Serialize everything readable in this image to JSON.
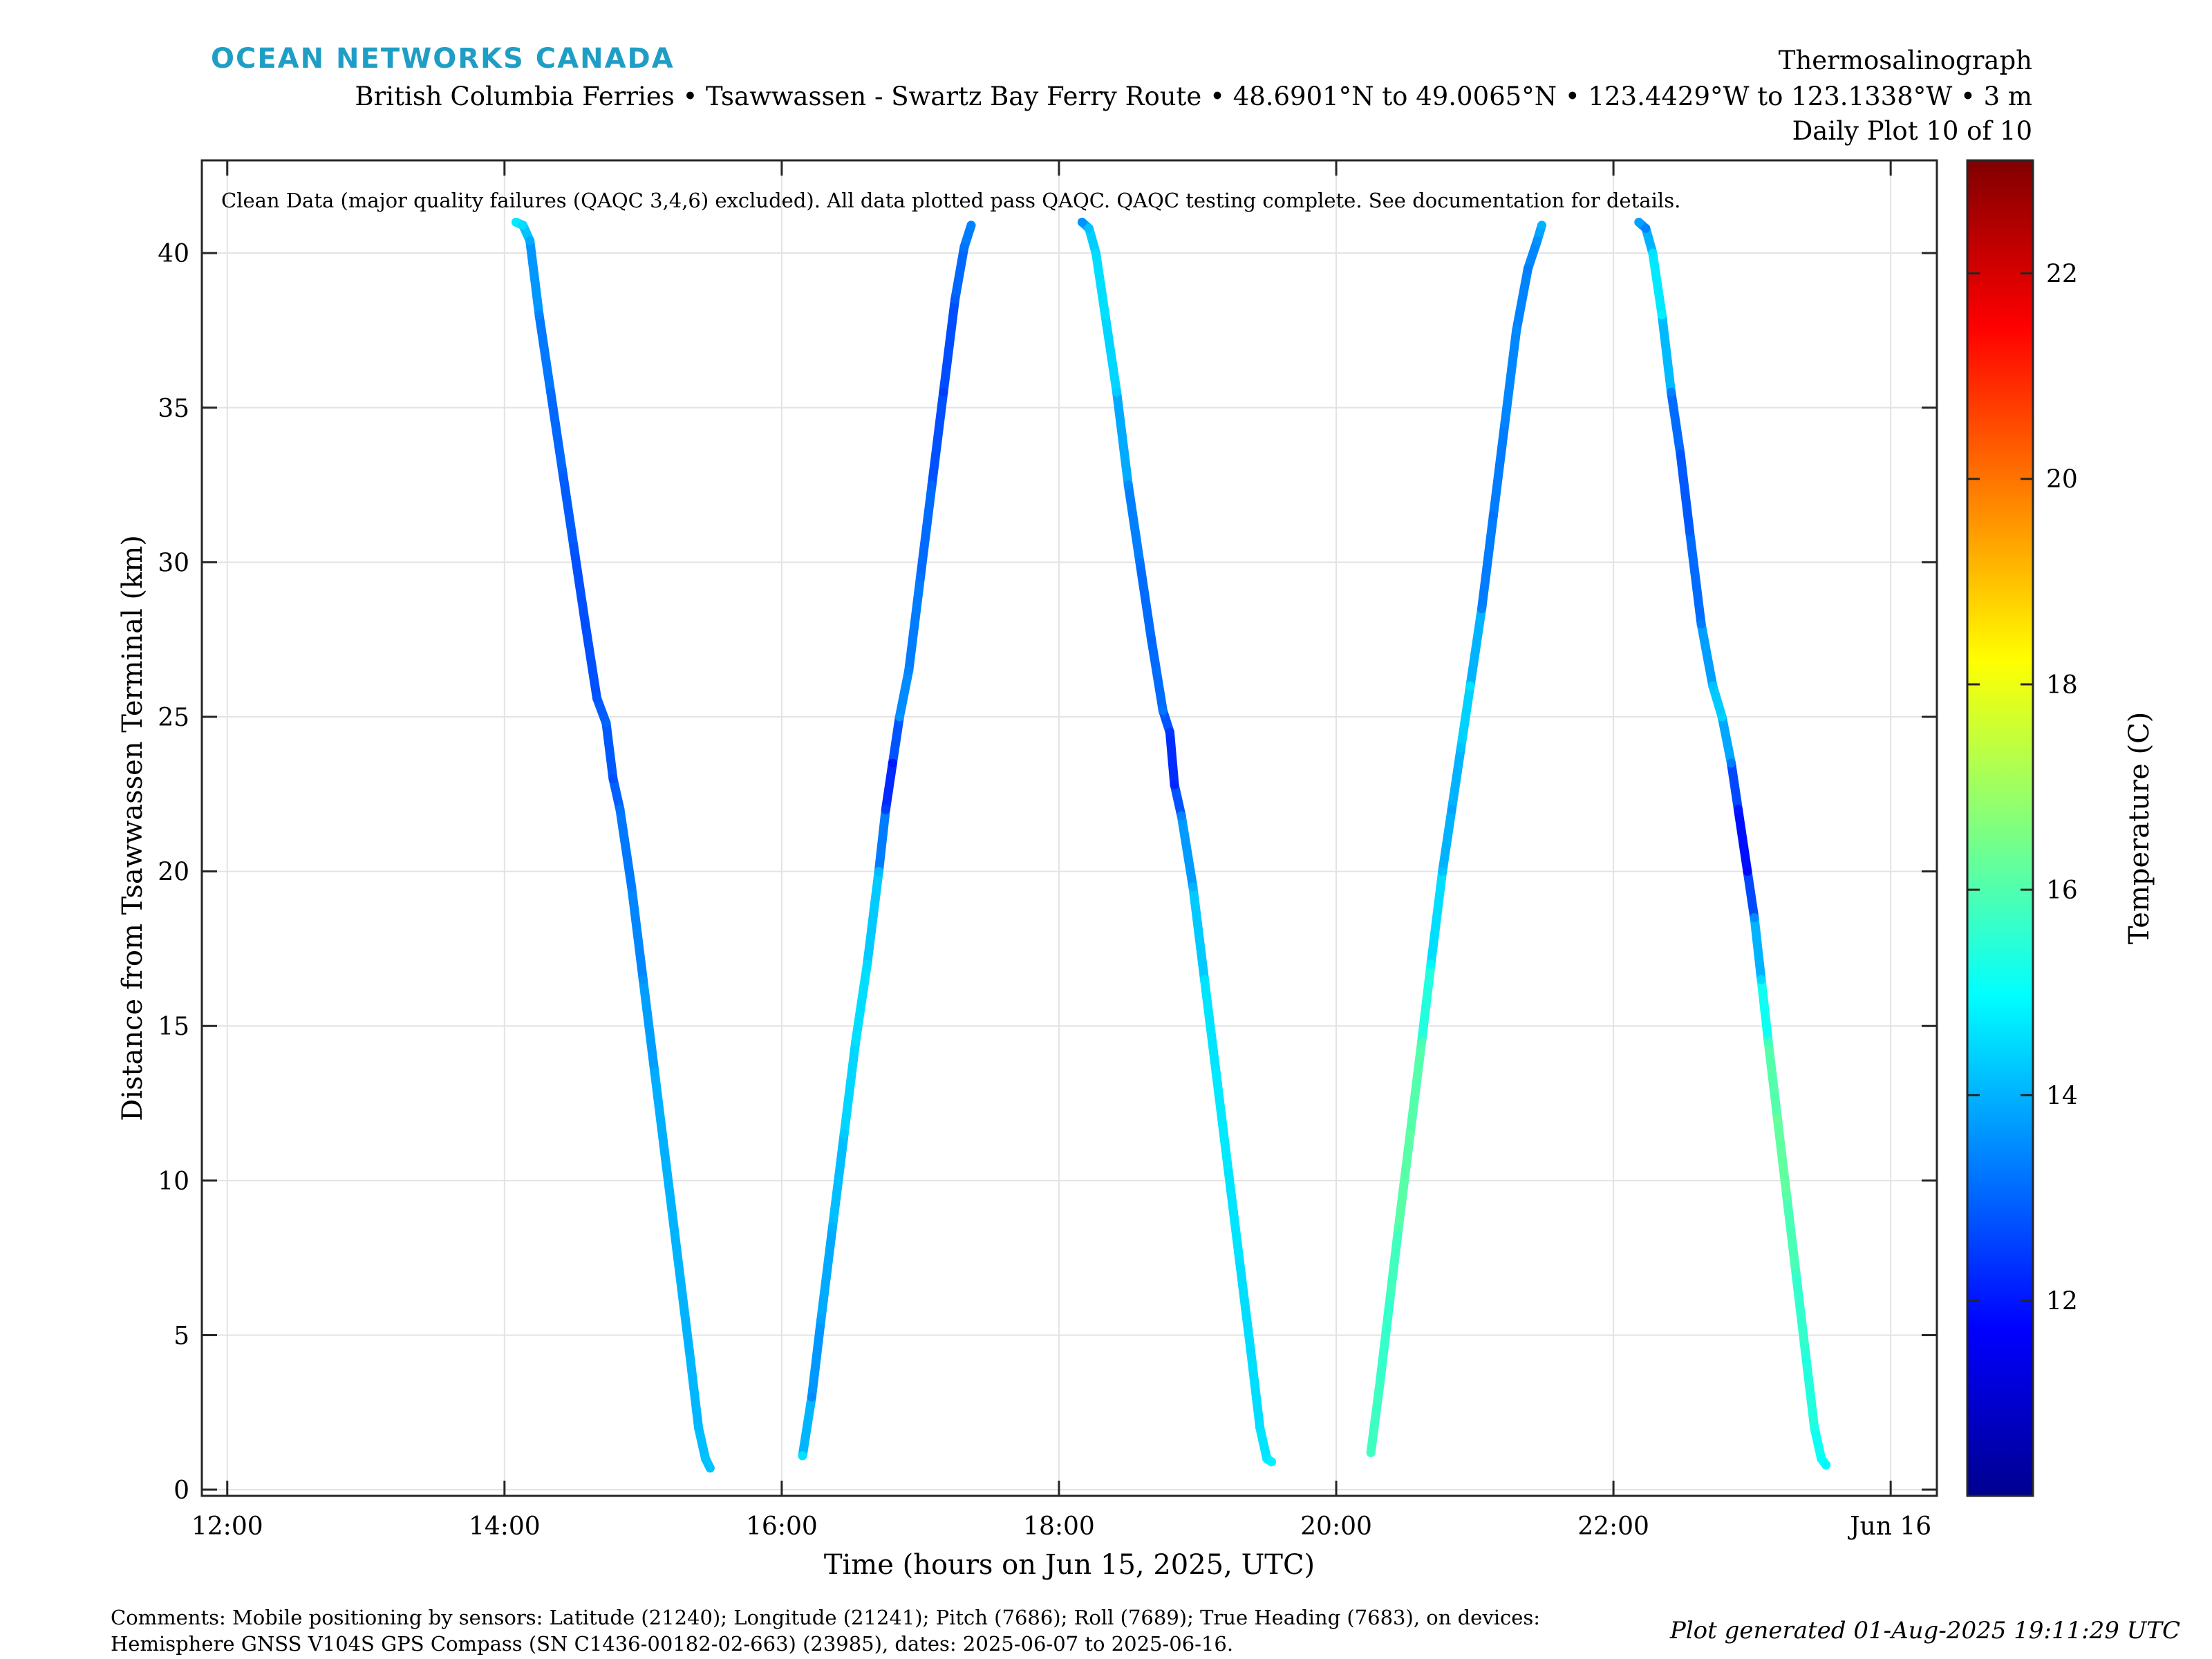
{
  "header": {
    "brand": "OCEAN NETWORKS CANADA",
    "instrument": "Thermosalinograph",
    "route": "British Columbia Ferries • Tsawwassen - Swartz Bay Ferry Route • 48.6901°N to 49.0065°N • 123.4429°W to 123.1338°W • 3 m",
    "plot_index": "Daily Plot 10 of 10"
  },
  "footer": {
    "comments_line1": "Comments: Mobile positioning by sensors: Latitude (21240); Longitude (21241); Pitch (7686); Roll (7689); True Heading (7683), on devices:",
    "comments_line2": "Hemisphere GNSS V104S GPS Compass (SN C1436-00182-02-663) (23985), dates: 2025-06-07 to 2025-06-16.",
    "generated": "Plot generated 01-Aug-2025 19:11:29 UTC"
  },
  "chart_data": {
    "type": "scatter",
    "annotation": "Clean Data (major quality failures (QAQC 3,4,6) excluded). All data plotted pass QAQC. QAQC testing complete. See documentation for details.",
    "xlabel": "Time (hours on Jun 15, 2025, UTC)",
    "ylabel": "Distance from Tsawwassen Terminal (km)",
    "xlim": [
      "2025-06-15T11:49",
      "2025-06-16T00:20"
    ],
    "ylim": [
      -0.2,
      43
    ],
    "xticks": [
      {
        "t": "2025-06-15T12:00",
        "label": "12:00"
      },
      {
        "t": "2025-06-15T14:00",
        "label": "14:00"
      },
      {
        "t": "2025-06-15T16:00",
        "label": "16:00"
      },
      {
        "t": "2025-06-15T18:00",
        "label": "18:00"
      },
      {
        "t": "2025-06-15T20:00",
        "label": "20:00"
      },
      {
        "t": "2025-06-15T22:00",
        "label": "22:00"
      },
      {
        "t": "2025-06-16T00:00",
        "label": "Jun 16"
      }
    ],
    "yticks": [
      0,
      5,
      10,
      15,
      20,
      25,
      30,
      35,
      40
    ],
    "grid": true,
    "colorbar": {
      "label": "Temperature (C)",
      "range": [
        10.1,
        23.1
      ],
      "ticks": [
        12,
        14,
        16,
        18,
        20,
        22
      ],
      "colormap": "jet",
      "position": "right"
    },
    "series": [
      {
        "points": [
          [
            "2025-06-15T14:05",
            41.0,
            14.7
          ],
          [
            "2025-06-15T14:08",
            40.9,
            14.5
          ],
          [
            "2025-06-15T14:11",
            40.4,
            13.9
          ],
          [
            "2025-06-15T14:15",
            38.0,
            13.4
          ],
          [
            "2025-06-15T14:20",
            35.5,
            13.1
          ],
          [
            "2025-06-15T14:25",
            33.0,
            13.0
          ],
          [
            "2025-06-15T14:30",
            30.5,
            12.8
          ],
          [
            "2025-06-15T14:35",
            28.0,
            12.7
          ],
          [
            "2025-06-15T14:40",
            25.6,
            12.8
          ],
          [
            "2025-06-15T14:44",
            24.8,
            13.0
          ],
          [
            "2025-06-15T14:47",
            23.0,
            12.7
          ],
          [
            "2025-06-15T14:50",
            22.0,
            13.2
          ],
          [
            "2025-06-15T14:55",
            19.5,
            13.3
          ],
          [
            "2025-06-15T15:00",
            16.5,
            13.6
          ],
          [
            "2025-06-15T15:05",
            13.5,
            13.9
          ],
          [
            "2025-06-15T15:10",
            10.5,
            14.0
          ],
          [
            "2025-06-15T15:15",
            7.5,
            14.0
          ],
          [
            "2025-06-15T15:20",
            4.5,
            14.0
          ],
          [
            "2025-06-15T15:24",
            2.0,
            14.1
          ],
          [
            "2025-06-15T15:27",
            1.0,
            14.2
          ],
          [
            "2025-06-15T15:29",
            0.7,
            14.2
          ]
        ]
      },
      {
        "points": [
          [
            "2025-06-15T16:09",
            1.1,
            14.6
          ],
          [
            "2025-06-15T16:13",
            3.0,
            13.5
          ],
          [
            "2025-06-15T16:17",
            5.5,
            13.8
          ],
          [
            "2025-06-15T16:22",
            8.5,
            14.0
          ],
          [
            "2025-06-15T16:27",
            11.5,
            14.3
          ],
          [
            "2025-06-15T16:32",
            14.5,
            14.6
          ],
          [
            "2025-06-15T16:37",
            17.0,
            14.5
          ],
          [
            "2025-06-15T16:42",
            20.0,
            14.1
          ],
          [
            "2025-06-15T16:45",
            22.0,
            12.5
          ],
          [
            "2025-06-15T16:48",
            23.5,
            12.0
          ],
          [
            "2025-06-15T16:51",
            25.0,
            13.6
          ],
          [
            "2025-06-15T16:55",
            26.5,
            13.4
          ],
          [
            "2025-06-15T17:00",
            29.5,
            13.2
          ],
          [
            "2025-06-15T17:05",
            32.5,
            13.0
          ],
          [
            "2025-06-15T17:10",
            35.5,
            12.5
          ],
          [
            "2025-06-15T17:15",
            38.5,
            12.9
          ],
          [
            "2025-06-15T17:19",
            40.2,
            13.2
          ],
          [
            "2025-06-15T17:22",
            40.9,
            13.4
          ]
        ]
      },
      {
        "points": [
          [
            "2025-06-15T18:10",
            41.0,
            13.6
          ],
          [
            "2025-06-15T18:13",
            40.8,
            14.2
          ],
          [
            "2025-06-15T18:16",
            40.0,
            14.5
          ],
          [
            "2025-06-15T18:20",
            38.0,
            14.6
          ],
          [
            "2025-06-15T18:25",
            35.5,
            14.3
          ],
          [
            "2025-06-15T18:30",
            32.5,
            13.5
          ],
          [
            "2025-06-15T18:35",
            30.0,
            13.2
          ],
          [
            "2025-06-15T18:40",
            27.5,
            13.0
          ],
          [
            "2025-06-15T18:45",
            25.2,
            13.2
          ],
          [
            "2025-06-15T18:48",
            24.5,
            12.4
          ],
          [
            "2025-06-15T18:50",
            22.8,
            12.2
          ],
          [
            "2025-06-15T18:53",
            21.8,
            13.4
          ],
          [
            "2025-06-15T18:58",
            19.5,
            14.0
          ],
          [
            "2025-06-15T19:03",
            16.5,
            14.6
          ],
          [
            "2025-06-15T19:08",
            13.5,
            14.7
          ],
          [
            "2025-06-15T19:13",
            10.5,
            14.7
          ],
          [
            "2025-06-15T19:18",
            7.5,
            14.6
          ],
          [
            "2025-06-15T19:23",
            4.5,
            14.5
          ],
          [
            "2025-06-15T19:27",
            2.0,
            14.6
          ],
          [
            "2025-06-15T19:30",
            1.0,
            14.7
          ],
          [
            "2025-06-15T19:32",
            0.9,
            14.8
          ]
        ]
      },
      {
        "points": [
          [
            "2025-06-15T20:15",
            1.2,
            15.8
          ],
          [
            "2025-06-15T20:19",
            3.5,
            15.7
          ],
          [
            "2025-06-15T20:23",
            6.0,
            15.6
          ],
          [
            "2025-06-15T20:27",
            8.5,
            16.0
          ],
          [
            "2025-06-15T20:32",
            11.5,
            16.2
          ],
          [
            "2025-06-15T20:37",
            14.5,
            15.9
          ],
          [
            "2025-06-15T20:41",
            17.0,
            14.9
          ],
          [
            "2025-06-15T20:46",
            20.0,
            14.2
          ],
          [
            "2025-06-15T20:50",
            22.0,
            13.8
          ],
          [
            "2025-06-15T20:54",
            24.0,
            14.2
          ],
          [
            "2025-06-15T20:58",
            26.0,
            14.6
          ],
          [
            "2025-06-15T21:03",
            28.5,
            13.4
          ],
          [
            "2025-06-15T21:08",
            31.5,
            13.2
          ],
          [
            "2025-06-15T21:13",
            34.5,
            13.4
          ],
          [
            "2025-06-15T21:18",
            37.5,
            13.5
          ],
          [
            "2025-06-15T21:23",
            39.5,
            13.3
          ],
          [
            "2025-06-15T21:27",
            40.4,
            13.6
          ],
          [
            "2025-06-15T21:29",
            40.9,
            14.0
          ]
        ]
      },
      {
        "points": [
          [
            "2025-06-15T22:11",
            41.0,
            13.8
          ],
          [
            "2025-06-15T22:14",
            40.8,
            13.4
          ],
          [
            "2025-06-15T22:17",
            40.0,
            14.6
          ],
          [
            "2025-06-15T22:21",
            38.0,
            14.8
          ],
          [
            "2025-06-15T22:25",
            35.5,
            13.4
          ],
          [
            "2025-06-15T22:29",
            33.5,
            12.8
          ],
          [
            "2025-06-15T22:33",
            31.0,
            12.9
          ],
          [
            "2025-06-15T22:38",
            28.0,
            13.3
          ],
          [
            "2025-06-15T22:43",
            26.0,
            14.2
          ],
          [
            "2025-06-15T22:47",
            25.0,
            14.4
          ],
          [
            "2025-06-15T22:51",
            23.5,
            13.3
          ],
          [
            "2025-06-15T22:54",
            22.0,
            12.0
          ],
          [
            "2025-06-15T22:58",
            20.0,
            11.8
          ],
          [
            "2025-06-15T23:01",
            18.5,
            13.5
          ],
          [
            "2025-06-15T23:04",
            16.5,
            14.5
          ],
          [
            "2025-06-15T23:07",
            14.5,
            15.8
          ],
          [
            "2025-06-15T23:11",
            12.0,
            16.3
          ],
          [
            "2025-06-15T23:15",
            9.5,
            16.1
          ],
          [
            "2025-06-15T23:19",
            7.0,
            15.7
          ],
          [
            "2025-06-15T23:23",
            4.5,
            15.5
          ],
          [
            "2025-06-15T23:27",
            2.0,
            15.3
          ],
          [
            "2025-06-15T23:30",
            1.0,
            15.0
          ],
          [
            "2025-06-15T23:32",
            0.8,
            14.9
          ]
        ]
      }
    ]
  }
}
